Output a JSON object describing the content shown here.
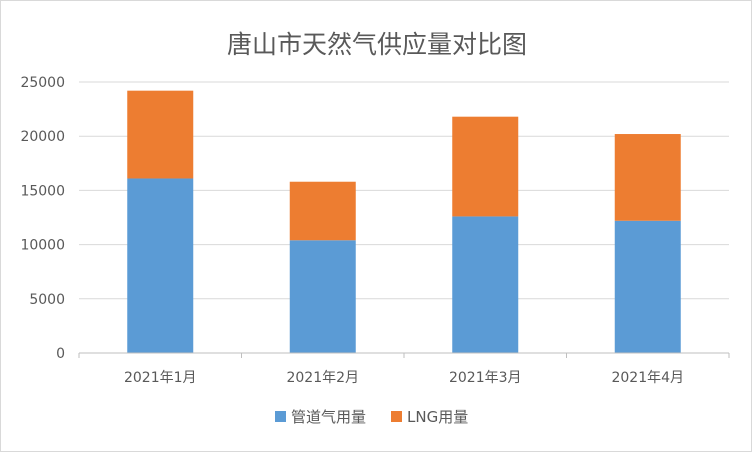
{
  "chart_data": {
    "type": "bar",
    "stacked": true,
    "title": "唐山市天然气供应量对比图",
    "xlabel": "",
    "ylabel": "",
    "categories": [
      "2021年1月",
      "2021年2月",
      "2021年3月",
      "2021年4月"
    ],
    "series": [
      {
        "name": "管道气用量",
        "color": "#5b9bd5",
        "values": [
          16100,
          10400,
          12600,
          12200
        ]
      },
      {
        "name": "LNG用量",
        "color": "#ed7d31",
        "values": [
          8100,
          5400,
          9200,
          8000
        ]
      }
    ],
    "ylim": [
      0,
      25000
    ],
    "yticks": [
      0,
      5000,
      10000,
      15000,
      20000,
      25000
    ],
    "grid": true,
    "legend_position": "bottom"
  }
}
